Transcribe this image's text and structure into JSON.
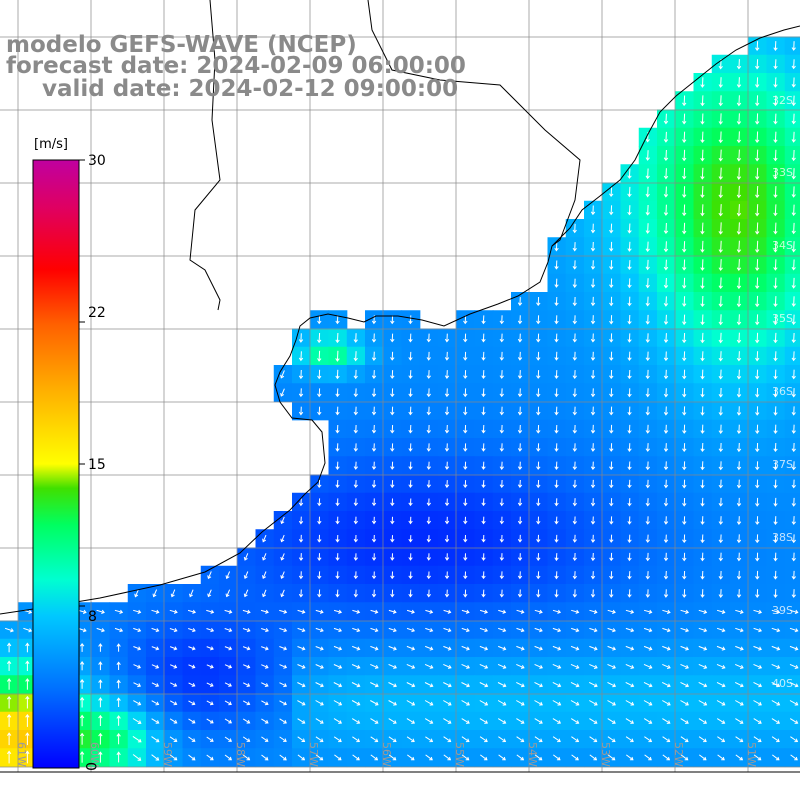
{
  "title": {
    "line1": "modelo GEFS-WAVE (NCEP)",
    "line2": "forecast date: 2024-02-09 06:00:00",
    "line3": "valid date: 2024-02-12 09:00:00"
  },
  "colorbar": {
    "unit": "[m/s]",
    "ticks": [
      "30",
      "22",
      "15",
      "8",
      "0"
    ],
    "tick_values": [
      30,
      22,
      15,
      8,
      0
    ],
    "range": [
      0,
      30
    ],
    "colors": [
      "#0000ff",
      "#0070ff",
      "#00c8ff",
      "#00ffd0",
      "#00ff60",
      "#40e000",
      "#ffff00",
      "#ffb000",
      "#ff6000",
      "#ff0000",
      "#e00060",
      "#c000a0"
    ]
  },
  "map": {
    "lat_labels": [
      "32S",
      "33S",
      "34S",
      "35S",
      "36S",
      "37S",
      "38S",
      "39S",
      "40S"
    ],
    "lon_labels": [
      "61W",
      "60W",
      "59W",
      "58W",
      "57W",
      "56W",
      "55W",
      "54W",
      "53W",
      "52W",
      "51W"
    ],
    "land_color": "#ffffff",
    "grid_color": "#888888",
    "coast_color": "#000000",
    "arrow_color": "#ffffff"
  }
}
